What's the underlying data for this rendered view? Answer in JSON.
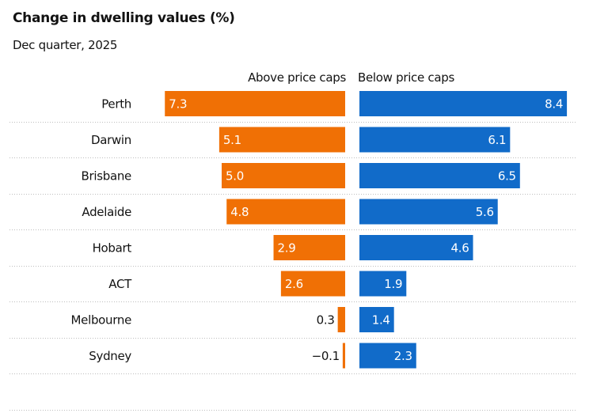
{
  "chart_data": {
    "type": "bar",
    "orientation": "horizontal",
    "title": "Change in dwelling values (%)",
    "subtitle": "Dec quarter, 2025",
    "categories": [
      "Perth",
      "Darwin",
      "Brisbane",
      "Adelaide",
      "Hobart",
      "ACT",
      "Melbourne",
      "Sydney"
    ],
    "series": [
      {
        "name": "Above price caps",
        "color": "#f07005",
        "values": [
          7.3,
          5.1,
          5.0,
          4.8,
          2.9,
          2.6,
          0.3,
          -0.1
        ],
        "labels": [
          "7.3",
          "5.1",
          "5.0",
          "4.8",
          "2.9",
          "2.6",
          "0.3",
          "−0.1"
        ]
      },
      {
        "name": "Below price caps",
        "color": "#116bc9",
        "values": [
          8.4,
          6.1,
          6.5,
          5.6,
          4.6,
          1.9,
          1.4,
          2.3
        ],
        "labels": [
          "8.4",
          "6.1",
          "6.5",
          "5.6",
          "4.6",
          "1.9",
          "1.4",
          "2.3"
        ]
      }
    ],
    "grid": "dotted row separators",
    "legend": "column headers above bars"
  }
}
